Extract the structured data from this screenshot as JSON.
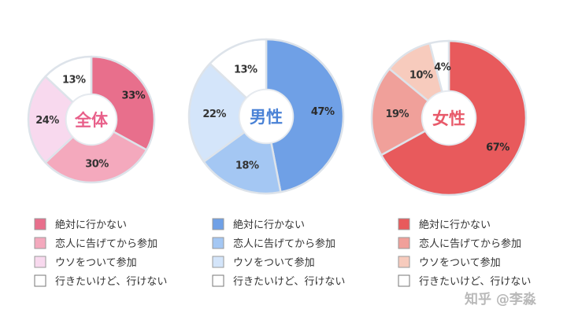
{
  "chart_data": [
    {
      "type": "pie",
      "title": "全体",
      "categories": [
        "絶対に行かない",
        "恋人に告げてから参加",
        "ウソをついて参加",
        "行きたいけど、行けない"
      ],
      "values": [
        33,
        30,
        24,
        13
      ],
      "value_labels": [
        "33%",
        "30%",
        "24%",
        "13%"
      ],
      "colors": [
        "#e86f8c",
        "#f4a9bd",
        "#f8d9ee",
        "#ffffff"
      ],
      "title_color": "#e8608a"
    },
    {
      "type": "pie",
      "title": "男性",
      "categories": [
        "絶対に行かない",
        "恋人に告げてから参加",
        "ウソをついて参加",
        "行きたいけど、行けない"
      ],
      "values": [
        47,
        18,
        22,
        13
      ],
      "value_labels": [
        "47%",
        "18%",
        "22%",
        "13%"
      ],
      "colors": [
        "#6fa0e6",
        "#a4c7f3",
        "#d4e5fa",
        "#ffffff"
      ],
      "title_color": "#4a82d6"
    },
    {
      "type": "pie",
      "title": "女性",
      "categories": [
        "絶対に行かない",
        "恋人に告げてから参加",
        "ウソをついて参加",
        "行きたいけど、行けない"
      ],
      "values": [
        67,
        19,
        10,
        4
      ],
      "value_labels": [
        "67%",
        "19%",
        "10%",
        "4%"
      ],
      "colors": [
        "#e85a5c",
        "#f0a09a",
        "#f7cbbd",
        "#ffffff"
      ],
      "title_color": "#e85a6a"
    }
  ],
  "watermark": "知乎 @李淼"
}
